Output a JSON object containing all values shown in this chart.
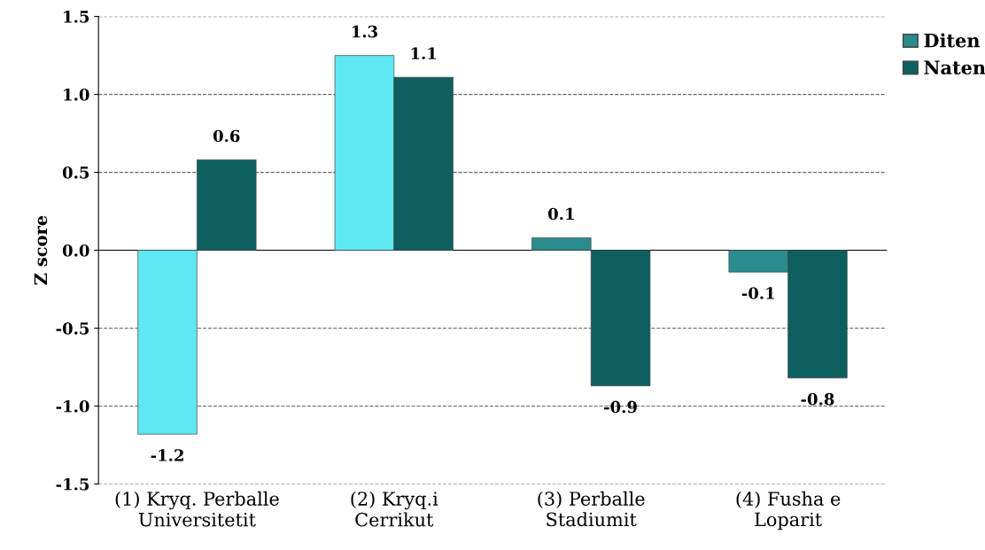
{
  "chart_data": {
    "type": "bar",
    "ylabel": "Z score",
    "categories": [
      "(1) Kryq. Perballe Universitetit",
      "(2) Kryq.i Cerrikut",
      "(3) Perballe Stadiumit",
      "(4) Fusha e Loparit"
    ],
    "series": [
      {
        "name": "Diten",
        "color": "#2a8c8e",
        "colors": [
          "#5ee9f2",
          "#5ee9f2",
          "#2a8c8e",
          "#2a8c8e"
        ],
        "values": [
          -1.18,
          1.25,
          0.08,
          -0.14
        ],
        "value_labels": [
          "-1.2",
          "1.3",
          "0.1",
          "-0.1"
        ]
      },
      {
        "name": "Naten",
        "color": "#0d5f60",
        "values": [
          0.58,
          1.11,
          -0.87,
          -0.82
        ],
        "value_labels": [
          "0.6",
          "1.1",
          "-0.9",
          "-0.8"
        ]
      }
    ],
    "ylim": [
      -1.5,
      1.5
    ],
    "yticks": [
      {
        "value": -1.5,
        "label": "-1.5"
      },
      {
        "value": -1.0,
        "label": "-1.0"
      },
      {
        "value": -0.5,
        "label": "-0.5"
      },
      {
        "value": 0.0,
        "label": "0.0"
      },
      {
        "value": 0.5,
        "label": "0.5"
      },
      {
        "value": 1.0,
        "label": "1.0"
      },
      {
        "value": 1.5,
        "label": "1.5"
      }
    ],
    "grid": "y",
    "legend": "top right"
  }
}
